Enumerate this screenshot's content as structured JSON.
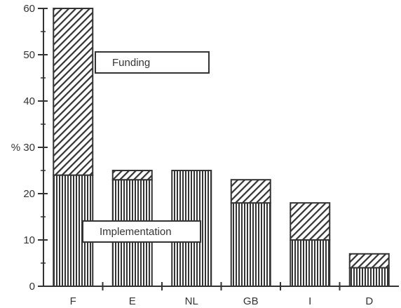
{
  "chart_data": {
    "type": "bar",
    "stacked": true,
    "categories": [
      "F",
      "E",
      "NL",
      "GB",
      "I",
      "D"
    ],
    "series": [
      {
        "name": "Implementation",
        "pattern": "vertical-stripes",
        "values": [
          24,
          23,
          25,
          18,
          10,
          4
        ]
      },
      {
        "name": "Funding",
        "pattern": "diagonal-hatch",
        "values": [
          36,
          2,
          0,
          5,
          8,
          3
        ]
      }
    ],
    "ylabel": "%",
    "ylim": [
      0,
      60
    ],
    "yticks": [
      0,
      10,
      20,
      30,
      40,
      50,
      60
    ],
    "ytick_labels": [
      "0",
      "10",
      "20",
      "% 30",
      "40",
      "50",
      "60"
    ],
    "grid": false,
    "colors": {
      "ink": "#333333",
      "background": "#ffffff"
    }
  }
}
